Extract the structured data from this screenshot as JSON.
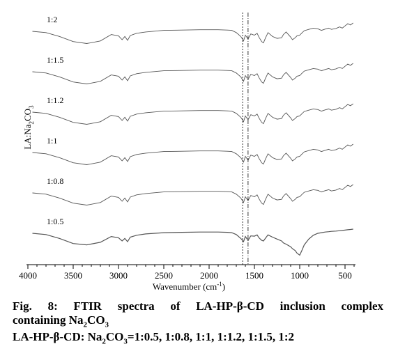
{
  "chart_data": {
    "type": "line",
    "title": "",
    "xlabel": "Wavenumber (cm",
    "xlabel_sup": "-1",
    "xlabel_end": ")",
    "ylabel_pre": "LA:Na",
    "ylabel_sub1": "2",
    "ylabel_mid": "CO",
    "ylabel_sub2": "3",
    "xlim": [
      4000,
      400
    ],
    "x_ticks": [
      4000,
      3500,
      3000,
      2500,
      2000,
      1500,
      1000,
      500
    ],
    "x_tick_labels": [
      "4000",
      "3500",
      "3000",
      "2500",
      "2000",
      "1500",
      "1000",
      "500"
    ],
    "grid": false,
    "legend": "none",
    "reference_lines": [
      1630,
      1570
    ],
    "series": [
      {
        "name": "1:2",
        "offset": 5,
        "style": "wave"
      },
      {
        "name": "1:1.5",
        "offset": 4,
        "style": "wave"
      },
      {
        "name": "1:1.2",
        "offset": 3,
        "style": "wave"
      },
      {
        "name": "1:1",
        "offset": 2,
        "style": "wave"
      },
      {
        "name": "1:0.8",
        "offset": 1,
        "style": "wave"
      },
      {
        "name": "1:0.5",
        "offset": 0,
        "style": "dip"
      }
    ],
    "profile_wave": {
      "x": [
        3950,
        3800,
        3650,
        3500,
        3350,
        3200,
        3080,
        3000,
        2960,
        2930,
        2900,
        2870,
        2800,
        2700,
        2500,
        2300,
        2100,
        1900,
        1800,
        1750,
        1700,
        1650,
        1620,
        1600,
        1570,
        1540,
        1500,
        1470,
        1450,
        1420,
        1400,
        1380,
        1350,
        1300,
        1250,
        1200,
        1180,
        1150,
        1100,
        1080,
        1050,
        1030,
        1000,
        980,
        950,
        900,
        850,
        800,
        760,
        720,
        680,
        650,
        600,
        560,
        530,
        500,
        470,
        440,
        410
      ],
      "y": [
        0,
        -0.4,
        -1.6,
        -3.2,
        -3.8,
        -3.0,
        -1.0,
        -1.4,
        -2.6,
        -1.6,
        -2.8,
        -1.3,
        -0.6,
        -0.2,
        0.3,
        0.4,
        0.5,
        0.5,
        0.4,
        0.3,
        -0.4,
        -1.6,
        -3.0,
        -1.2,
        -2.4,
        -0.8,
        -1.2,
        -0.6,
        -1.8,
        -3.2,
        -3.6,
        -2.2,
        -0.4,
        -1.6,
        -2.2,
        -2.0,
        -1.0,
        -0.2,
        -1.8,
        -2.6,
        -2.0,
        -1.4,
        -1.2,
        -0.6,
        0.2,
        0.6,
        1.0,
        0.8,
        0.3,
        0.7,
        1.0,
        0.6,
        0.9,
        1.4,
        1.0,
        1.7,
        2.4,
        2.0,
        2.6
      ]
    },
    "profile_dip": {
      "x": [
        3950,
        3800,
        3650,
        3500,
        3350,
        3200,
        3080,
        3000,
        2960,
        2930,
        2900,
        2870,
        2800,
        2700,
        2500,
        2300,
        2100,
        1900,
        1800,
        1750,
        1700,
        1650,
        1620,
        1600,
        1570,
        1540,
        1500,
        1470,
        1450,
        1420,
        1400,
        1380,
        1350,
        1300,
        1250,
        1200,
        1180,
        1150,
        1100,
        1080,
        1050,
        1030,
        1000,
        980,
        950,
        900,
        850,
        800,
        760,
        720,
        680,
        650,
        600,
        560,
        530,
        500,
        470,
        440,
        410
      ],
      "y": [
        0,
        -0.4,
        -1.6,
        -3.2,
        -3.6,
        -2.8,
        -1.0,
        -1.4,
        -2.4,
        -1.6,
        -2.6,
        -1.2,
        -0.6,
        -0.2,
        0.2,
        0.3,
        0.4,
        0.4,
        0.3,
        0.2,
        -0.4,
        -1.6,
        -2.6,
        -1.0,
        -2.2,
        -0.8,
        -0.9,
        -0.5,
        -1.4,
        -2.2,
        -2.4,
        -1.6,
        -0.5,
        -1.2,
        -1.8,
        -2.4,
        -3.0,
        -3.4,
        -4.2,
        -4.8,
        -5.4,
        -6.2,
        -6.8,
        -5.6,
        -3.6,
        -1.8,
        -0.6,
        0.0,
        0.2,
        0.4,
        0.5,
        0.6,
        0.7,
        0.8,
        0.9,
        1.0,
        1.1,
        1.2,
        1.3
      ]
    }
  },
  "caption": {
    "line1": "Fig. 8: FTIR spectra of LA-HP-β-CD inclusion complex",
    "line2_pre": "containing Na",
    "line2_sub1": "2",
    "line2_mid": "CO",
    "line2_sub2": "3",
    "line3_pre": "LA-HP-β-CD: Na",
    "line3_sub1": "2",
    "line3_mid": "CO",
    "line3_sub2": "3",
    "line3_post": "=1:0.5, 1:0.8, 1:1, 1:1.2, 1:1.5, 1:2"
  },
  "colors": {
    "line": "#555555",
    "axis": "#000000",
    "refline": "#000000"
  }
}
